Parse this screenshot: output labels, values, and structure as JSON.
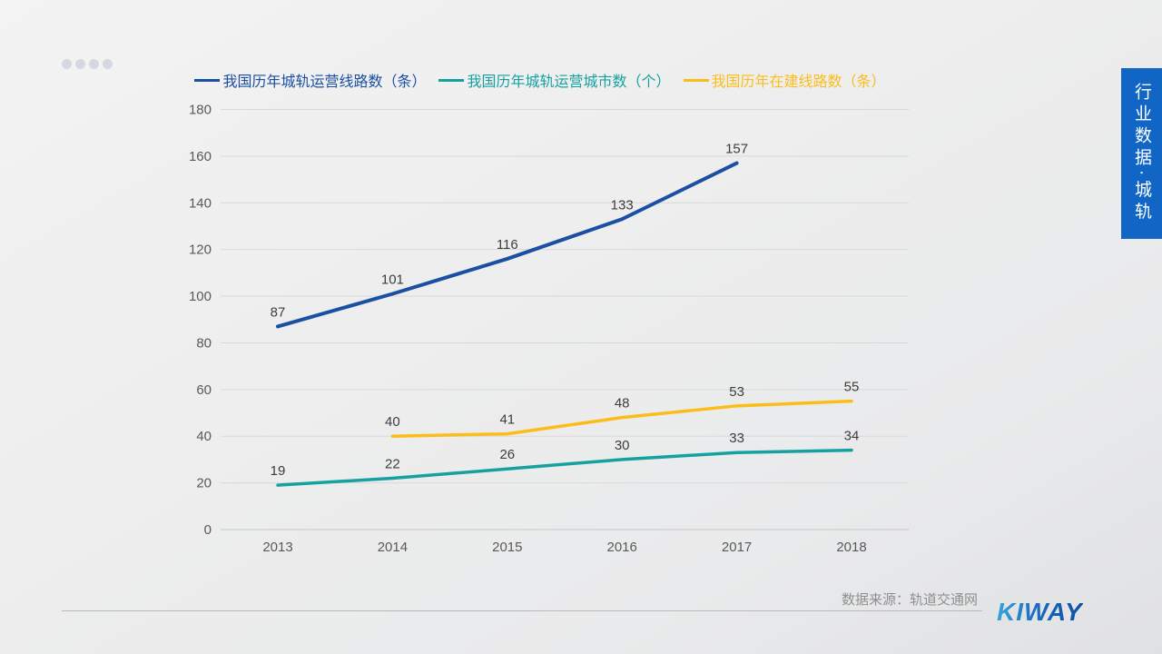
{
  "pagination": {
    "dots_count": 4
  },
  "sidebar_tab": {
    "label": "行业数据·城轨",
    "bg": "#1166c5",
    "text_color": "#ffffff"
  },
  "footer": {
    "source": "数据来源：轨道交通网",
    "logo": "KIWAY"
  },
  "chart_data": {
    "type": "line",
    "categories": [
      "2013",
      "2014",
      "2015",
      "2016",
      "2017",
      "2018"
    ],
    "series": [
      {
        "name": "我国历年城轨运营线路数（条）",
        "color": "#1b4fa3",
        "years": [
          "2013",
          "2014",
          "2015",
          "2016",
          "2017"
        ],
        "values": [
          87,
          101,
          116,
          133,
          157
        ]
      },
      {
        "name": "我国历年城轨运营城市数（个）",
        "color": "#16a1a0",
        "years": [
          "2013",
          "2014",
          "2015",
          "2016",
          "2017",
          "2018"
        ],
        "values": [
          19,
          22,
          26,
          30,
          33,
          34
        ]
      },
      {
        "name": "我国历年在建线路数（条）",
        "color": "#fcbd1b",
        "years": [
          "2014",
          "2015",
          "2016",
          "2017",
          "2018"
        ],
        "values": [
          40,
          41,
          48,
          53,
          55
        ]
      }
    ],
    "ylim": [
      0,
      180
    ],
    "ytick_step": 20,
    "grid": true,
    "legend_position": "top",
    "tick_color": "#595959",
    "label_color": "#3d3d3d",
    "gridline_color": "#d9d9d9"
  }
}
